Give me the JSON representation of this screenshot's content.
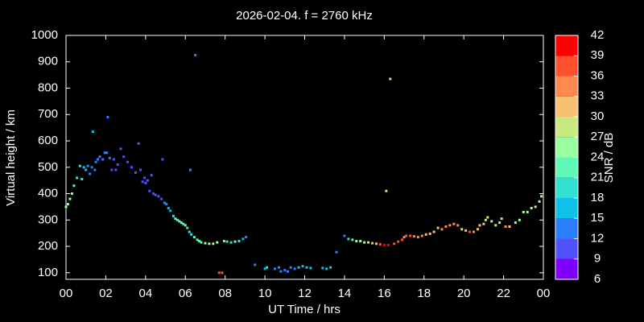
{
  "chart_data": {
    "type": "scatter",
    "title": "2026-02-04. f = 2760 kHz",
    "xlabel": "UT Time / hrs",
    "ylabel": "Virtual height / km",
    "xlim": [
      0,
      24
    ],
    "xticks": [
      {
        "value": 0,
        "label": "00"
      },
      {
        "value": 2,
        "label": "02"
      },
      {
        "value": 4,
        "label": "04"
      },
      {
        "value": 6,
        "label": "06"
      },
      {
        "value": 8,
        "label": "08"
      },
      10,
      12,
      14,
      16,
      18,
      20,
      22,
      {
        "value": 24,
        "label": "00"
      }
    ],
    "ylim": [
      75,
      1000
    ],
    "yticks": [
      100,
      200,
      300,
      400,
      500,
      600,
      700,
      800,
      900,
      1000
    ],
    "colorbar": {
      "label": "SNR / dB",
      "ticks": [
        6,
        9,
        12,
        15,
        18,
        21,
        24,
        27,
        30,
        33,
        36,
        39,
        42
      ],
      "colors": [
        "#8000ff",
        "#5050ff",
        "#2c80ff",
        "#10c0e8",
        "#30e0d0",
        "#60f8b8",
        "#98ffa0",
        "#c8e880",
        "#f8c070",
        "#ff8850",
        "#ff5030",
        "#ff0000"
      ]
    },
    "points": [
      [
        0.0,
        350,
        24
      ],
      [
        0.1,
        360,
        24
      ],
      [
        0.2,
        380,
        24
      ],
      [
        0.3,
        400,
        24
      ],
      [
        0.4,
        430,
        21
      ],
      [
        0.55,
        460,
        18
      ],
      [
        0.7,
        505,
        18
      ],
      [
        0.8,
        455,
        18
      ],
      [
        0.9,
        500,
        15
      ],
      [
        1.0,
        490,
        15
      ],
      [
        1.1,
        505,
        12
      ],
      [
        1.2,
        475,
        12
      ],
      [
        1.3,
        500,
        12
      ],
      [
        1.35,
        635,
        15
      ],
      [
        1.45,
        490,
        12
      ],
      [
        1.5,
        520,
        12
      ],
      [
        1.6,
        530,
        12
      ],
      [
        1.7,
        540,
        12
      ],
      [
        1.85,
        530,
        12
      ],
      [
        1.95,
        555,
        12
      ],
      [
        2.05,
        555,
        12
      ],
      [
        2.1,
        690,
        12
      ],
      [
        2.2,
        535,
        12
      ],
      [
        2.3,
        490,
        9
      ],
      [
        2.4,
        530,
        9
      ],
      [
        2.5,
        490,
        9
      ],
      [
        2.6,
        510,
        9
      ],
      [
        2.75,
        570,
        9
      ],
      [
        2.9,
        540,
        9
      ],
      [
        3.1,
        520,
        9
      ],
      [
        3.3,
        500,
        9
      ],
      [
        3.5,
        480,
        9
      ],
      [
        3.65,
        590,
        9
      ],
      [
        3.75,
        490,
        9
      ],
      [
        3.85,
        445,
        9
      ],
      [
        3.95,
        460,
        9
      ],
      [
        4.0,
        440,
        9
      ],
      [
        4.1,
        450,
        9
      ],
      [
        4.2,
        410,
        9
      ],
      [
        4.3,
        470,
        9
      ],
      [
        4.4,
        400,
        9
      ],
      [
        4.5,
        395,
        9
      ],
      [
        4.65,
        390,
        9
      ],
      [
        4.8,
        380,
        9
      ],
      [
        4.85,
        530,
        9
      ],
      [
        4.95,
        365,
        12
      ],
      [
        5.05,
        360,
        12
      ],
      [
        5.15,
        345,
        15
      ],
      [
        5.25,
        335,
        15
      ],
      [
        5.4,
        315,
        18
      ],
      [
        5.5,
        305,
        21
      ],
      [
        5.6,
        300,
        21
      ],
      [
        5.7,
        295,
        21
      ],
      [
        5.8,
        290,
        21
      ],
      [
        5.9,
        285,
        21
      ],
      [
        6.0,
        280,
        21
      ],
      [
        6.1,
        270,
        18
      ],
      [
        6.2,
        255,
        18
      ],
      [
        6.25,
        490,
        12
      ],
      [
        6.3,
        245,
        18
      ],
      [
        6.45,
        235,
        21
      ],
      [
        6.5,
        925,
        12
      ],
      [
        6.6,
        225,
        21
      ],
      [
        6.7,
        220,
        21
      ],
      [
        6.8,
        215,
        21
      ],
      [
        7.0,
        212,
        24
      ],
      [
        7.2,
        210,
        24
      ],
      [
        7.4,
        210,
        27
      ],
      [
        7.6,
        215,
        24
      ],
      [
        7.7,
        100,
        36
      ],
      [
        7.85,
        100,
        36
      ],
      [
        7.95,
        220,
        21
      ],
      [
        8.1,
        218,
        18
      ],
      [
        8.3,
        215,
        18
      ],
      [
        8.5,
        218,
        21
      ],
      [
        8.7,
        220,
        18
      ],
      [
        8.9,
        228,
        15
      ],
      [
        9.05,
        235,
        12
      ],
      [
        9.5,
        130,
        12
      ],
      [
        10.0,
        115,
        15
      ],
      [
        10.1,
        120,
        18
      ],
      [
        10.5,
        115,
        12
      ],
      [
        10.7,
        120,
        12
      ],
      [
        10.8,
        105,
        12
      ],
      [
        11.0,
        110,
        12
      ],
      [
        11.15,
        105,
        12
      ],
      [
        11.3,
        120,
        12
      ],
      [
        11.5,
        115,
        12
      ],
      [
        11.7,
        120,
        15
      ],
      [
        11.9,
        125,
        15
      ],
      [
        12.1,
        120,
        15
      ],
      [
        12.3,
        118,
        15
      ],
      [
        12.9,
        118,
        15
      ],
      [
        13.1,
        115,
        15
      ],
      [
        13.3,
        120,
        15
      ],
      [
        13.6,
        178,
        12
      ],
      [
        14.0,
        240,
        12
      ],
      [
        14.2,
        228,
        18
      ],
      [
        14.4,
        225,
        21
      ],
      [
        14.6,
        220,
        24
      ],
      [
        14.8,
        220,
        24
      ],
      [
        15.0,
        215,
        24
      ],
      [
        15.2,
        215,
        27
      ],
      [
        15.4,
        212,
        30
      ],
      [
        15.6,
        210,
        30
      ],
      [
        15.8,
        208,
        36
      ],
      [
        16.0,
        205,
        39
      ],
      [
        16.1,
        410,
        27
      ],
      [
        16.2,
        205,
        39
      ],
      [
        16.3,
        835,
        30
      ],
      [
        16.5,
        210,
        36
      ],
      [
        16.7,
        218,
        36
      ],
      [
        16.9,
        225,
        36
      ],
      [
        17.0,
        235,
        33
      ],
      [
        17.1,
        240,
        36
      ],
      [
        17.3,
        240,
        36
      ],
      [
        17.5,
        238,
        33
      ],
      [
        17.7,
        235,
        33
      ],
      [
        17.9,
        240,
        33
      ],
      [
        18.1,
        245,
        30
      ],
      [
        18.3,
        248,
        30
      ],
      [
        18.5,
        255,
        30
      ],
      [
        18.7,
        270,
        30
      ],
      [
        18.9,
        265,
        33
      ],
      [
        19.1,
        275,
        33
      ],
      [
        19.3,
        280,
        33
      ],
      [
        19.5,
        285,
        33
      ],
      [
        19.7,
        280,
        33
      ],
      [
        19.9,
        265,
        27
      ],
      [
        20.1,
        260,
        30
      ],
      [
        20.3,
        255,
        36
      ],
      [
        20.5,
        255,
        33
      ],
      [
        20.7,
        265,
        30
      ],
      [
        20.8,
        280,
        30
      ],
      [
        21.0,
        285,
        30
      ],
      [
        21.1,
        300,
        27
      ],
      [
        21.2,
        310,
        27
      ],
      [
        21.4,
        295,
        27
      ],
      [
        21.6,
        280,
        27
      ],
      [
        21.8,
        290,
        24
      ],
      [
        21.9,
        305,
        27
      ],
      [
        22.1,
        275,
        33
      ],
      [
        22.3,
        275,
        30
      ],
      [
        22.6,
        290,
        27
      ],
      [
        22.8,
        300,
        24
      ],
      [
        23.0,
        330,
        24
      ],
      [
        23.2,
        330,
        24
      ],
      [
        23.4,
        345,
        27
      ],
      [
        23.6,
        350,
        27
      ],
      [
        23.8,
        370,
        24
      ],
      [
        23.9,
        390,
        27
      ]
    ]
  }
}
